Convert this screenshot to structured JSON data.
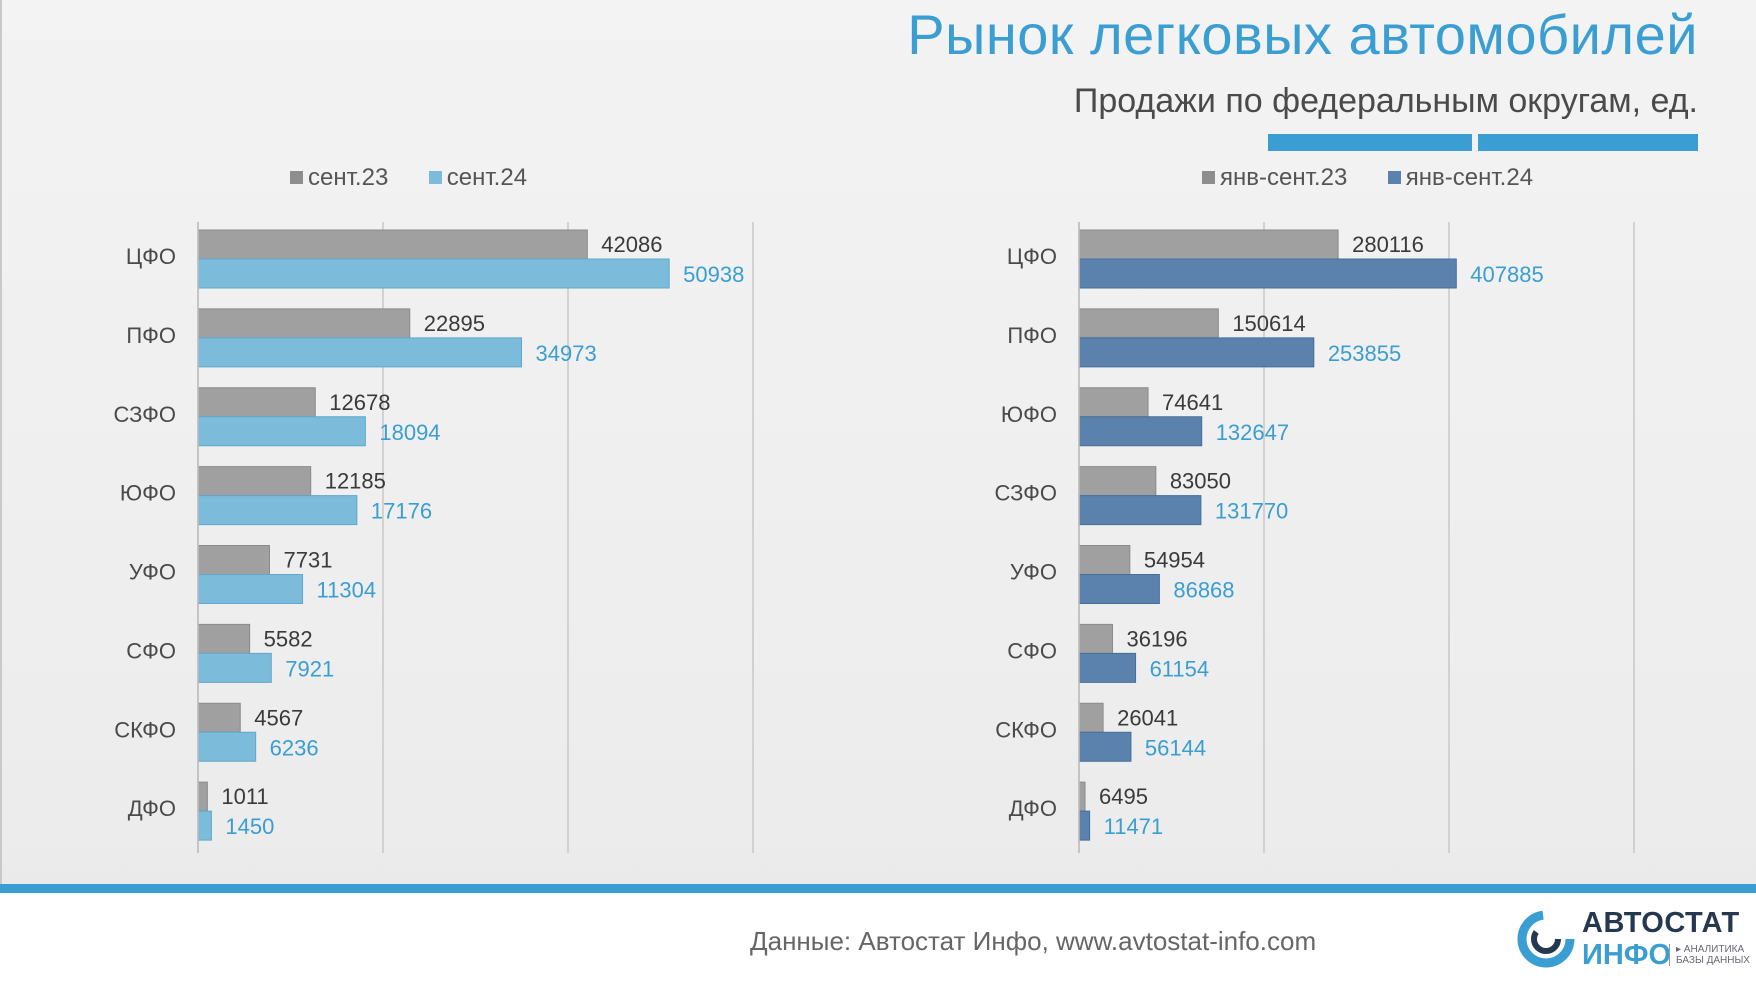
{
  "header": {
    "title": "Рынок легковых автомобилей",
    "subtitle": "Продажи по федеральным округам, ед."
  },
  "colors": {
    "title": "#3a9ed3",
    "series_gray": "#a0a0a0",
    "series_light_blue": "#7dbbdb",
    "series_dark_blue": "#5b82ad",
    "label_gray": "#3a3a3a",
    "label_blue": "#3a9ed3"
  },
  "chart_data": [
    {
      "type": "bar",
      "orientation": "horizontal",
      "categories": [
        "ЦФО",
        "ПФО",
        "СЗФО",
        "ЮФО",
        "УФО",
        "СФО",
        "СКФО",
        "ДФО"
      ],
      "series": [
        {
          "name": "сент.23",
          "values": [
            42086,
            22895,
            12678,
            12185,
            7731,
            5582,
            4567,
            1011
          ]
        },
        {
          "name": "сент.24",
          "values": [
            50938,
            34973,
            18094,
            17176,
            11304,
            7921,
            6236,
            1450
          ]
        }
      ],
      "xlim": [
        0,
        60000
      ],
      "grid": true,
      "legend_position": "top"
    },
    {
      "type": "bar",
      "orientation": "horizontal",
      "categories": [
        "ЦФО",
        "ПФО",
        "ЮФО",
        "СЗФО",
        "УФО",
        "СФО",
        "СКФО",
        "ДФО"
      ],
      "series": [
        {
          "name": "янв-сент.23",
          "values": [
            280116,
            150614,
            74641,
            83050,
            54954,
            36196,
            26041,
            6495
          ]
        },
        {
          "name": "янв-сент.24",
          "values": [
            407885,
            253855,
            132647,
            131770,
            86868,
            61154,
            56144,
            11471
          ]
        }
      ],
      "xlim": [
        0,
        600000
      ],
      "grid": true,
      "legend_position": "top"
    }
  ],
  "footer": {
    "source": "Данные: Автостат Инфо, www.avtostat-info.com",
    "logo_word1": "АВТОСТАТ",
    "logo_word2": "ИНФО",
    "logo_tagline": "▸ АНАЛИТИКА\nБАЗЫ ДАННЫХ"
  }
}
